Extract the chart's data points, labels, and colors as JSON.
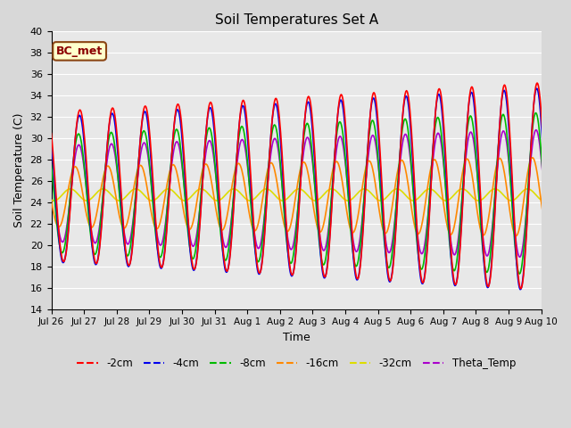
{
  "title": "Soil Temperatures Set A",
  "xlabel": "Time",
  "ylabel": "Soil Temperature (C)",
  "ylim": [
    14,
    40
  ],
  "annotation": "BC_met",
  "series_names": [
    "-2cm",
    "-4cm",
    "-8cm",
    "-16cm",
    "-32cm",
    "Theta_Temp"
  ],
  "series_colors": [
    "#ff0000",
    "#0000ee",
    "#00bb00",
    "#ff8800",
    "#dddd00",
    "#aa00cc"
  ],
  "background_color": "#e8e8e8",
  "grid_color": "#ffffff",
  "num_days": 15.5,
  "dt_hours": 0.5,
  "peak_hour": 15,
  "phase_shift_hours": [
    0.0,
    0.3,
    1.0,
    3.5,
    7.0,
    0.8
  ],
  "amplitudes": [
    7.0,
    6.8,
    5.5,
    2.8,
    0.55,
    4.5
  ],
  "means": [
    25.5,
    25.2,
    24.8,
    24.5,
    24.7,
    24.8
  ],
  "amp_growth": [
    0.18,
    0.18,
    0.14,
    0.06,
    0.0,
    0.1
  ],
  "tick_dates": [
    "Jul 26",
    "Jul 27",
    "Jul 28",
    "Jul 29",
    "Jul 30",
    "Jul 31",
    "Aug 1",
    "Aug 2",
    "Aug 3",
    "Aug 4",
    "Aug 5",
    "Aug 6",
    "Aug 7",
    "Aug 8",
    "Aug 9",
    "Aug 10"
  ],
  "tick_positions": [
    0,
    1,
    2,
    3,
    4,
    5,
    6,
    7,
    8,
    9,
    10,
    11,
    12,
    13,
    14,
    15
  ],
  "yticks": [
    14,
    16,
    18,
    20,
    22,
    24,
    26,
    28,
    30,
    32,
    34,
    36,
    38,
    40
  ]
}
